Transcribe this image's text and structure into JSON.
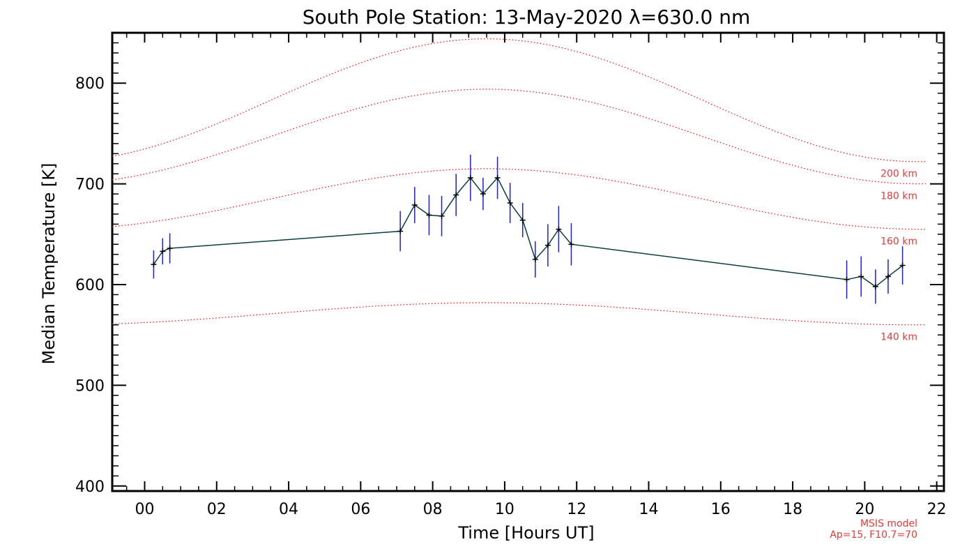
{
  "chart_data": {
    "type": "line",
    "title": "South Pole Station: 13-May-2020 λ=630.0 nm",
    "xlabel": "Time [Hours UT]",
    "ylabel": "Median Temperature [K]",
    "xlim": [
      -0.9,
      22.2
    ],
    "ylim": [
      395,
      850
    ],
    "x_ticks": [
      0,
      2,
      4,
      6,
      8,
      10,
      12,
      14,
      16,
      18,
      20,
      22
    ],
    "x_tick_labels": [
      "00",
      "02",
      "04",
      "06",
      "08",
      "10",
      "12",
      "14",
      "16",
      "18",
      "20",
      "22"
    ],
    "y_ticks": [
      400,
      500,
      600,
      700,
      800
    ],
    "y_tick_labels": [
      "400",
      "500",
      "600",
      "700",
      "800"
    ],
    "grid": false,
    "series": [
      {
        "color": "#000000",
        "line_color": "#0b3d3d",
        "errorbar_color": "#1a1aff",
        "x": [
          0.25,
          0.5,
          0.7,
          7.1,
          7.5,
          7.9,
          8.25,
          8.65,
          9.05,
          9.4,
          9.8,
          10.15,
          10.5,
          10.85,
          11.2,
          11.5,
          11.85,
          19.5,
          19.9,
          20.3,
          20.65,
          21.05
        ],
        "y": [
          620,
          633,
          636,
          653,
          679,
          669,
          668,
          689,
          706,
          690,
          706,
          681,
          664,
          625,
          639,
          655,
          640,
          605,
          608,
          598,
          608,
          619
        ],
        "err": [
          14,
          13,
          15,
          20,
          18,
          20,
          20,
          21,
          23,
          16,
          21,
          20,
          17,
          18,
          21,
          23,
          21,
          19,
          20,
          17,
          17,
          19
        ]
      }
    ],
    "model_curves": [
      {
        "label": "200 km",
        "color": "#ff0000",
        "min": 722,
        "max": 844,
        "peak_hour": 9.5
      },
      {
        "label": "180 km",
        "color": "#ff0000",
        "min": 700,
        "max": 794,
        "peak_hour": 9.5
      },
      {
        "label": "160 km",
        "color": "#ff0000",
        "min": 655,
        "max": 715,
        "peak_hour": 9.5
      },
      {
        "label": "140 km",
        "color": "#ff0000",
        "min": 560,
        "max": 582,
        "peak_hour": 9.5
      }
    ],
    "model_note": [
      "MSIS model",
      "Ap=15, F10.7=70"
    ]
  }
}
